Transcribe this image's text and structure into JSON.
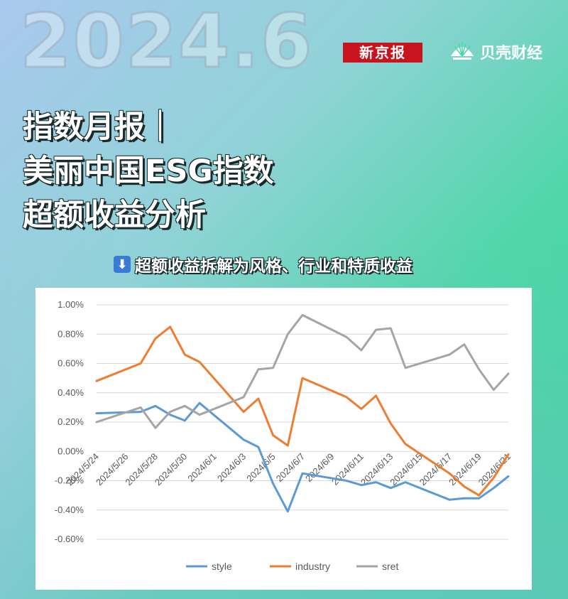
{
  "header": {
    "big_date": "2024.6",
    "logo_xjb": "新京报",
    "logo_bk": "贝壳财经"
  },
  "headline": {
    "line1": "指数月报｜",
    "line2": "美丽中国ESG指数",
    "line3": "超额收益分析"
  },
  "subtitle": {
    "icon": "down-arrow-icon",
    "text": "超额收益拆解为风格、行业和特质收益"
  },
  "colors": {
    "style": "#5b9bd5",
    "industry": "#ed7d31",
    "sret": "#a5a5a5"
  },
  "chart_data": {
    "type": "line",
    "ylim": [
      -0.6,
      1.0
    ],
    "y_ticks": [
      "1.00%",
      "0.80%",
      "0.60%",
      "0.40%",
      "0.20%",
      "0.00%",
      "-0.20%",
      "-0.40%",
      "-0.60%"
    ],
    "y_tick_values": [
      1.0,
      0.8,
      0.6,
      0.4,
      0.2,
      0.0,
      -0.2,
      -0.4,
      -0.6
    ],
    "x_tick_labels": [
      "2024/5/24",
      "2024/5/26",
      "2024/5/28",
      "2024/5/30",
      "2024/6/1",
      "2024/6/3",
      "2024/6/5",
      "2024/6/7",
      "2024/6/9",
      "2024/6/11",
      "2024/6/13",
      "2024/6/15",
      "2024/6/17",
      "2024/6/19",
      "2024/6/21"
    ],
    "x_tick_days": [
      0,
      2,
      4,
      6,
      8,
      10,
      12,
      14,
      16,
      18,
      20,
      22,
      24,
      26,
      28
    ],
    "x_day_range": [
      0,
      28
    ],
    "x_days": [
      0,
      3,
      4,
      5,
      6,
      7,
      10,
      11,
      12,
      13,
      14,
      17,
      18,
      19,
      20,
      21,
      24,
      25,
      26,
      27,
      28
    ],
    "x": [
      "2024/5/24",
      "2024/5/27",
      "2024/5/28",
      "2024/5/29",
      "2024/5/30",
      "2024/5/31",
      "2024/6/3",
      "2024/6/4",
      "2024/6/5",
      "2024/6/6",
      "2024/6/7",
      "2024/6/10",
      "2024/6/11",
      "2024/6/12",
      "2024/6/13",
      "2024/6/14",
      "2024/6/17",
      "2024/6/18",
      "2024/6/19",
      "2024/6/20",
      "2024/6/21"
    ],
    "series": [
      {
        "name": "style",
        "values": [
          0.26,
          0.27,
          0.31,
          0.25,
          0.21,
          0.33,
          0.08,
          0.03,
          -0.22,
          -0.41,
          -0.15,
          -0.2,
          -0.23,
          -0.21,
          -0.25,
          -0.21,
          -0.33,
          -0.32,
          -0.32,
          -0.25,
          -0.17
        ]
      },
      {
        "name": "industry",
        "values": [
          0.48,
          0.6,
          0.77,
          0.85,
          0.66,
          0.61,
          0.27,
          0.36,
          0.11,
          0.04,
          0.5,
          0.37,
          0.29,
          0.38,
          0.19,
          0.05,
          -0.15,
          -0.24,
          -0.3,
          -0.18,
          -0.02
        ]
      },
      {
        "name": "sret",
        "values": [
          0.2,
          0.3,
          0.16,
          0.27,
          0.31,
          0.25,
          0.37,
          0.56,
          0.57,
          0.8,
          0.93,
          0.78,
          0.69,
          0.83,
          0.84,
          0.57,
          0.66,
          0.73,
          0.56,
          0.42,
          0.53
        ]
      }
    ],
    "legend": "bottom",
    "grid": "horizontal"
  }
}
